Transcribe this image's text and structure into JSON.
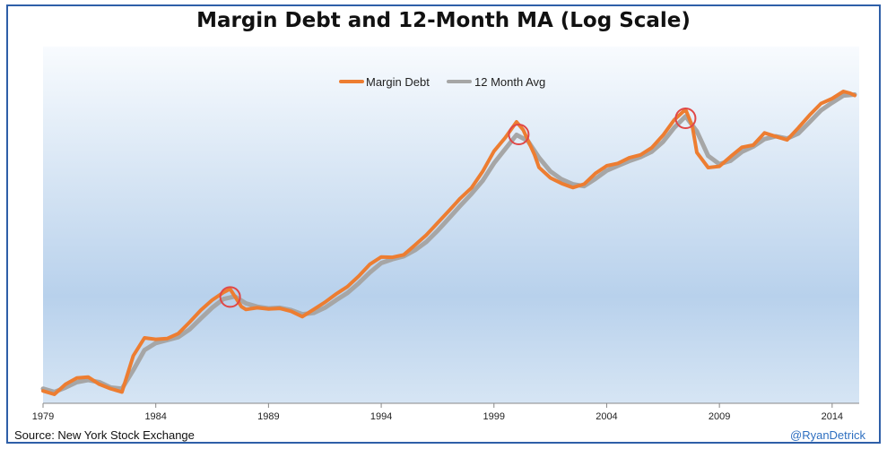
{
  "chart_data": {
    "type": "line",
    "title": "Margin Debt and 12-Month MA (Log Scale)",
    "y_scale": "log",
    "xlim": [
      1979,
      2015.2
    ],
    "x_ticks": [
      "1979",
      "1984",
      "1989",
      "1994",
      "1999",
      "2004",
      "2009",
      "2014"
    ],
    "legend_position": "top-center",
    "grid": false,
    "series": [
      {
        "name": "Margin Debt",
        "color": "#ed7d31",
        "points": [
          [
            1979.0,
            10.6
          ],
          [
            1979.5,
            10.3
          ],
          [
            1980.0,
            11.2
          ],
          [
            1980.5,
            11.8
          ],
          [
            1981.0,
            11.9
          ],
          [
            1981.5,
            11.2
          ],
          [
            1982.0,
            10.8
          ],
          [
            1982.5,
            10.5
          ],
          [
            1983.0,
            14.2
          ],
          [
            1983.5,
            16.5
          ],
          [
            1984.0,
            16.3
          ],
          [
            1984.5,
            16.4
          ],
          [
            1985.0,
            17.1
          ],
          [
            1985.5,
            18.8
          ],
          [
            1986.0,
            20.8
          ],
          [
            1986.5,
            22.6
          ],
          [
            1987.0,
            24.1
          ],
          [
            1987.3,
            24.8
          ],
          [
            1987.8,
            21.4
          ],
          [
            1988.0,
            20.9
          ],
          [
            1988.5,
            21.2
          ],
          [
            1989.0,
            21.0
          ],
          [
            1989.5,
            21.1
          ],
          [
            1990.0,
            20.6
          ],
          [
            1990.5,
            19.7
          ],
          [
            1991.0,
            20.9
          ],
          [
            1991.5,
            22.2
          ],
          [
            1992.0,
            23.8
          ],
          [
            1992.5,
            25.3
          ],
          [
            1993.0,
            27.6
          ],
          [
            1993.5,
            30.5
          ],
          [
            1994.0,
            32.4
          ],
          [
            1994.5,
            32.3
          ],
          [
            1995.0,
            33.0
          ],
          [
            1995.5,
            35.8
          ],
          [
            1996.0,
            38.9
          ],
          [
            1996.5,
            43.0
          ],
          [
            1997.0,
            47.6
          ],
          [
            1997.5,
            52.8
          ],
          [
            1998.0,
            57.6
          ],
          [
            1998.5,
            66.1
          ],
          [
            1999.0,
            78.3
          ],
          [
            1999.5,
            87.6
          ],
          [
            2000.0,
            100.0
          ],
          [
            2000.3,
            93.5
          ],
          [
            2000.8,
            76.0
          ],
          [
            2001.0,
            68.4
          ],
          [
            2001.5,
            62.7
          ],
          [
            2002.0,
            59.8
          ],
          [
            2002.5,
            57.8
          ],
          [
            2003.0,
            59.5
          ],
          [
            2003.5,
            65.1
          ],
          [
            2004.0,
            69.3
          ],
          [
            2004.5,
            70.7
          ],
          [
            2005.0,
            74.1
          ],
          [
            2005.5,
            75.9
          ],
          [
            2006.0,
            80.6
          ],
          [
            2006.5,
            89.4
          ],
          [
            2007.0,
            101.8
          ],
          [
            2007.5,
            110.9
          ],
          [
            2007.8,
            96.3
          ],
          [
            2008.0,
            77.4
          ],
          [
            2008.5,
            68.3
          ],
          [
            2009.0,
            69.0
          ],
          [
            2009.5,
            74.9
          ],
          [
            2010.0,
            80.9
          ],
          [
            2010.5,
            82.4
          ],
          [
            2011.0,
            91.2
          ],
          [
            2011.5,
            88.5
          ],
          [
            2012.0,
            86.0
          ],
          [
            2012.5,
            95.1
          ],
          [
            2013.0,
            105.8
          ],
          [
            2013.5,
            116.4
          ],
          [
            2014.0,
            121.4
          ],
          [
            2014.5,
            128.9
          ],
          [
            2014.8,
            127.0
          ],
          [
            2015.0,
            124.6
          ]
        ]
      },
      {
        "name": "12 Month Avg",
        "color": "#a6a6a6",
        "points": [
          [
            1979.0,
            10.8
          ],
          [
            1979.5,
            10.5
          ],
          [
            1980.0,
            10.9
          ],
          [
            1980.5,
            11.4
          ],
          [
            1981.0,
            11.6
          ],
          [
            1981.5,
            11.4
          ],
          [
            1982.0,
            10.9
          ],
          [
            1982.5,
            10.8
          ],
          [
            1983.0,
            12.6
          ],
          [
            1983.5,
            14.9
          ],
          [
            1984.0,
            15.8
          ],
          [
            1984.5,
            16.2
          ],
          [
            1985.0,
            16.6
          ],
          [
            1985.5,
            17.7
          ],
          [
            1986.0,
            19.4
          ],
          [
            1986.5,
            21.2
          ],
          [
            1987.0,
            22.8
          ],
          [
            1987.5,
            23.3
          ],
          [
            1988.0,
            22.0
          ],
          [
            1988.5,
            21.4
          ],
          [
            1989.0,
            21.1
          ],
          [
            1989.5,
            21.2
          ],
          [
            1990.0,
            20.8
          ],
          [
            1990.5,
            20.1
          ],
          [
            1991.0,
            20.3
          ],
          [
            1991.5,
            21.2
          ],
          [
            1992.0,
            22.6
          ],
          [
            1992.5,
            24.0
          ],
          [
            1993.0,
            26.0
          ],
          [
            1993.5,
            28.5
          ],
          [
            1994.0,
            30.8
          ],
          [
            1994.5,
            31.8
          ],
          [
            1995.0,
            32.6
          ],
          [
            1995.5,
            34.3
          ],
          [
            1996.0,
            36.7
          ],
          [
            1996.5,
            40.3
          ],
          [
            1997.0,
            44.7
          ],
          [
            1997.5,
            49.6
          ],
          [
            1998.0,
            54.8
          ],
          [
            1998.5,
            61.2
          ],
          [
            1999.0,
            70.8
          ],
          [
            1999.5,
            79.7
          ],
          [
            2000.0,
            89.7
          ],
          [
            2000.5,
            85.3
          ],
          [
            2001.0,
            74.2
          ],
          [
            2001.5,
            66.2
          ],
          [
            2002.0,
            61.9
          ],
          [
            2002.5,
            59.4
          ],
          [
            2003.0,
            58.5
          ],
          [
            2003.5,
            62.2
          ],
          [
            2004.0,
            66.6
          ],
          [
            2004.5,
            69.3
          ],
          [
            2005.0,
            72.1
          ],
          [
            2005.5,
            74.5
          ],
          [
            2006.0,
            78.0
          ],
          [
            2006.5,
            84.7
          ],
          [
            2007.0,
            95.4
          ],
          [
            2007.5,
            104.7
          ],
          [
            2008.0,
            92.4
          ],
          [
            2008.5,
            75.3
          ],
          [
            2009.0,
            70.3
          ],
          [
            2009.5,
            72.3
          ],
          [
            2010.0,
            77.9
          ],
          [
            2010.5,
            81.4
          ],
          [
            2011.0,
            86.6
          ],
          [
            2011.5,
            88.6
          ],
          [
            2012.0,
            87.0
          ],
          [
            2012.5,
            90.7
          ],
          [
            2013.0,
            99.8
          ],
          [
            2013.5,
            110.0
          ],
          [
            2014.0,
            117.3
          ],
          [
            2014.5,
            124.5
          ],
          [
            2015.0,
            125.6
          ]
        ]
      }
    ],
    "annotations": [
      {
        "type": "circle",
        "x": 1987.3,
        "y": 23.2,
        "color": "#e04848"
      },
      {
        "type": "circle",
        "x": 2000.1,
        "y": 90.0,
        "color": "#e04848"
      },
      {
        "type": "circle",
        "x": 2007.5,
        "y": 103.0,
        "color": "#e04848"
      }
    ]
  },
  "footer": {
    "source": "Source:  New York Stock Exchange",
    "credit": "@RyanDetrick"
  }
}
